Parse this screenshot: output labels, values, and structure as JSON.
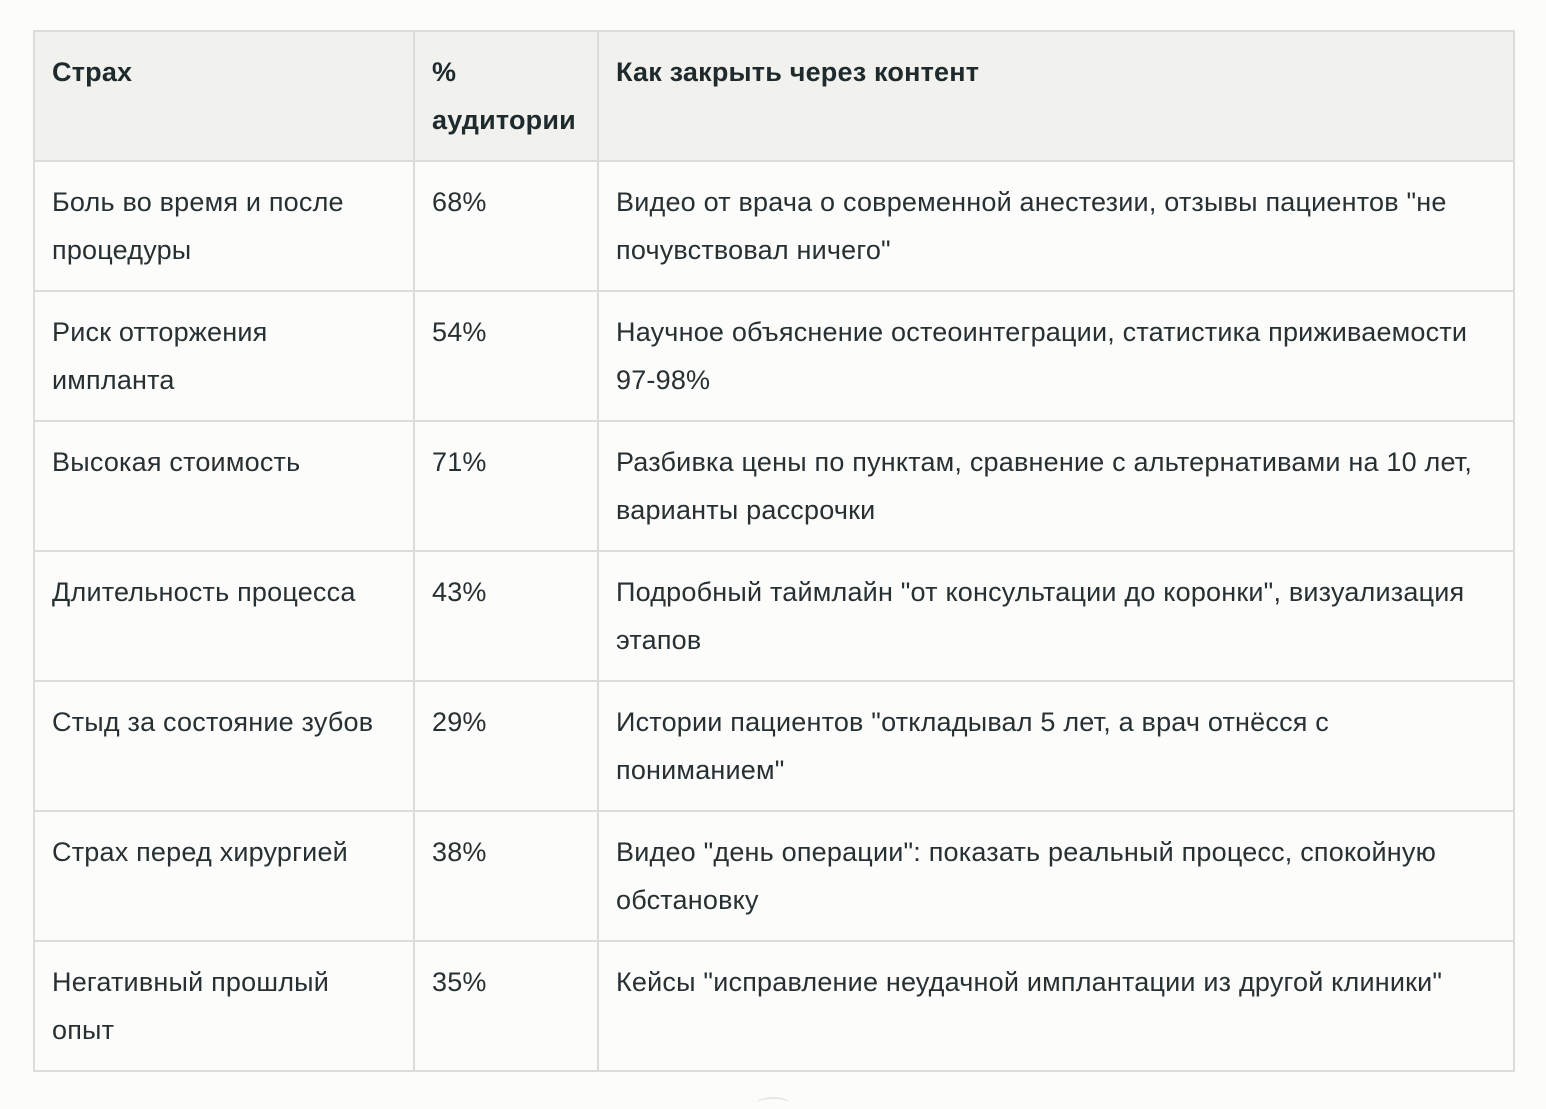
{
  "table": {
    "headers": [
      "Страх",
      "% аудитории",
      "Как закрыть через контент"
    ],
    "rows": [
      [
        "Боль во время и после процедуры",
        "68%",
        "Видео от врача о современной анестезии, отзывы пациентов \"не почувствовал ничего\""
      ],
      [
        "Риск отторжения импланта",
        "54%",
        "Научное объяснение остеоинтеграции, статистика приживаемости 97-98%"
      ],
      [
        "Высокая стоимость",
        "71%",
        "Разбивка цены по пунктам, сравнение с альтернативами на 10 лет, варианты рассрочки"
      ],
      [
        "Длительность процесса",
        "43%",
        "Подробный таймлайн \"от консультации до коронки\", визуализация этапов"
      ],
      [
        "Стыд за состояние зубов",
        "29%",
        "Истории пациентов \"откладывал 5 лет, а врач отнёсся с пониманием\""
      ],
      [
        "Страх перед хирургией",
        "38%",
        "Видео \"день операции\": показать реальный процесс, спокойную обстановку"
      ],
      [
        "Негативный прошлый опыт",
        "35%",
        "Кейсы \"исправление неудачной имплантации из другой клиники\""
      ]
    ]
  }
}
